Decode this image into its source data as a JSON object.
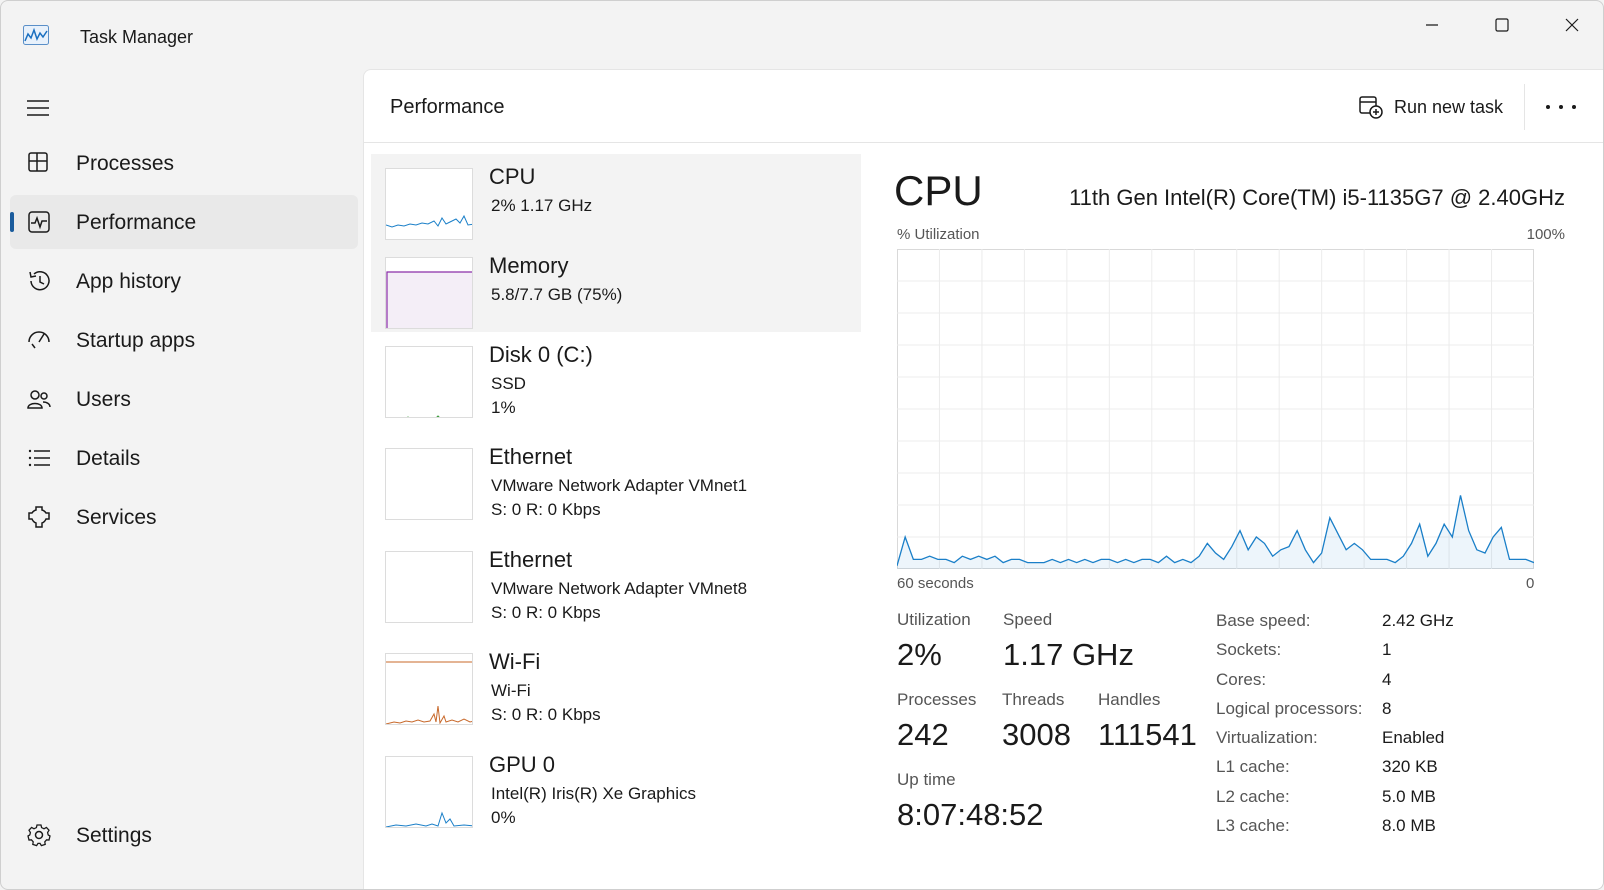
{
  "app": {
    "title": "Task Manager"
  },
  "window_controls": {
    "minimize": "minimize",
    "maximize": "maximize",
    "close": "close"
  },
  "sidebar": {
    "items": [
      {
        "label": "Processes",
        "icon": "processes-icon"
      },
      {
        "label": "Performance",
        "icon": "performance-icon",
        "active": true
      },
      {
        "label": "App history",
        "icon": "app-history-icon"
      },
      {
        "label": "Startup apps",
        "icon": "startup-apps-icon"
      },
      {
        "label": "Users",
        "icon": "users-icon"
      },
      {
        "label": "Details",
        "icon": "details-icon"
      },
      {
        "label": "Services",
        "icon": "services-icon"
      }
    ],
    "settings": {
      "label": "Settings",
      "icon": "gear-icon"
    }
  },
  "header": {
    "title": "Performance",
    "run_new_task": "Run new task"
  },
  "devices": [
    {
      "name": "CPU",
      "line1": "2%  1.17 GHz",
      "line2": "",
      "color": "#1a7fc8"
    },
    {
      "name": "Memory",
      "line1": "5.8/7.7 GB (75%)",
      "line2": "",
      "color": "#8b2fa8"
    },
    {
      "name": "Disk 0 (C:)",
      "line1": "SSD",
      "line2": "1%",
      "color": "#3a9a3a"
    },
    {
      "name": "Ethernet",
      "line1": "VMware Network Adapter VMnet1",
      "line2": "S: 0  R: 0 Kbps",
      "color": "#a66a2e"
    },
    {
      "name": "Ethernet",
      "line1": "VMware Network Adapter VMnet8",
      "line2": "S: 0  R: 0 Kbps",
      "color": "#a66a2e"
    },
    {
      "name": "Wi-Fi",
      "line1": "Wi-Fi",
      "line2": "S: 0  R: 0 Kbps",
      "color": "#c8682a"
    },
    {
      "name": "GPU 0",
      "line1": "Intel(R) Iris(R) Xe Graphics",
      "line2": "0%",
      "color": "#1a7fc8"
    }
  ],
  "detail": {
    "title": "CPU",
    "model": "11th Gen Intel(R) Core(TM) i5-1135G7 @ 2.40GHz",
    "util_label": "% Utilization",
    "util_max": "100%",
    "time_label": "60 seconds",
    "time_end": "0",
    "graph_color": "#1a7fc8",
    "utilization_history": [
      1,
      10,
      3,
      3,
      4,
      3,
      3,
      2,
      4,
      3,
      4,
      3,
      4,
      2,
      3,
      3,
      2,
      2,
      2,
      3,
      2,
      3,
      2,
      3,
      2,
      3,
      3,
      2,
      3,
      2,
      3,
      3,
      2,
      4,
      2,
      3,
      2,
      4,
      8,
      5,
      3,
      7,
      12,
      6,
      10,
      8,
      4,
      6,
      7,
      12,
      6,
      2,
      5,
      16,
      11,
      6,
      8,
      6,
      3,
      3,
      3,
      2,
      4,
      8,
      14,
      4,
      8,
      14,
      10,
      23,
      12,
      6,
      5,
      10,
      13,
      3,
      3,
      3,
      2
    ],
    "stats": {
      "utilization": {
        "label": "Utilization",
        "value": "2%"
      },
      "speed": {
        "label": "Speed",
        "value": "1.17 GHz"
      },
      "processes": {
        "label": "Processes",
        "value": "242"
      },
      "threads": {
        "label": "Threads",
        "value": "3008"
      },
      "handles": {
        "label": "Handles",
        "value": "111541"
      },
      "uptime": {
        "label": "Up time",
        "value": "8:07:48:52"
      }
    },
    "specs": [
      {
        "label": "Base speed:",
        "value": "2.42 GHz"
      },
      {
        "label": "Sockets:",
        "value": "1"
      },
      {
        "label": "Cores:",
        "value": "4"
      },
      {
        "label": "Logical processors:",
        "value": "8"
      },
      {
        "label": "Virtualization:",
        "value": "Enabled"
      },
      {
        "label": "L1 cache:",
        "value": "320 KB"
      },
      {
        "label": "L2 cache:",
        "value": "5.0 MB"
      },
      {
        "label": "L3 cache:",
        "value": "8.0 MB"
      }
    ]
  }
}
